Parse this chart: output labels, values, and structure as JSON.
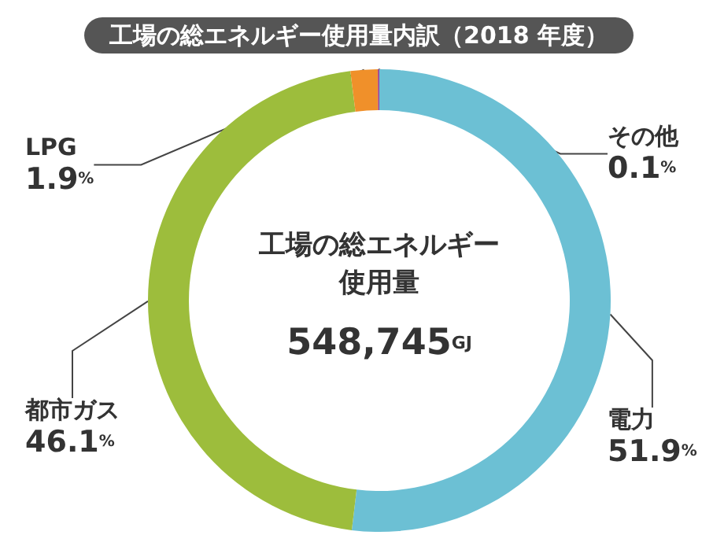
{
  "chart_data": {
    "type": "donut",
    "title": "工場の総エネルギー使用量内訳（2018 年度）",
    "categories": [
      "電力",
      "都市ガス",
      "LPG",
      "その他"
    ],
    "values": [
      51.9,
      46.1,
      1.9,
      0.1
    ],
    "colors": [
      "#6cc0d4",
      "#9dbd3c",
      "#f0902a",
      "#9b3c8c"
    ],
    "value_labels": [
      "51.9%",
      "46.1%",
      "1.9%",
      "0.1%"
    ],
    "annotations": [
      "工場の総エネルギー使用量",
      "548,745GJ"
    ],
    "legend": false
  }
}
